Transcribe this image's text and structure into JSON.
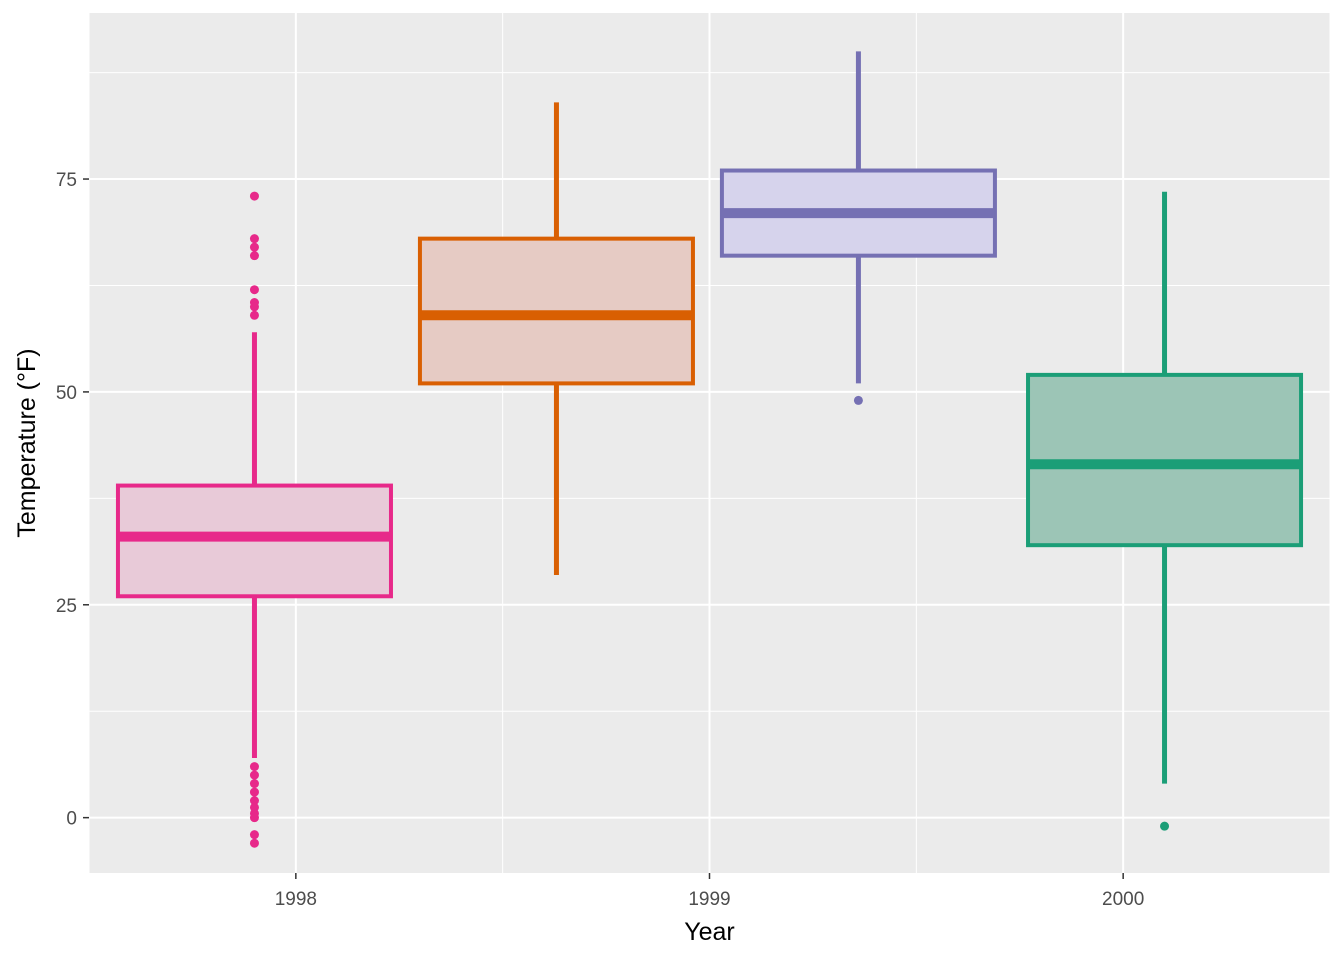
{
  "chart_data": {
    "type": "boxplot",
    "xlabel": "Year",
    "ylabel": "Temperature (°F)",
    "ylim": [
      -6.5,
      94.5
    ],
    "xlim": [
      1997.5,
      2000.5
    ],
    "x_ticks": [
      {
        "value": 1998,
        "label": "1998"
      },
      {
        "value": 1999,
        "label": "1999"
      },
      {
        "value": 2000,
        "label": "2000"
      }
    ],
    "y_ticks": [
      {
        "value": 0,
        "label": "0"
      },
      {
        "value": 25,
        "label": "25"
      },
      {
        "value": 50,
        "label": "50"
      },
      {
        "value": 75,
        "label": "75"
      }
    ],
    "grid": true,
    "legend": "none",
    "background": "#ebebeb",
    "boxes": [
      {
        "x_center": 1997.9,
        "x_half_width": 0.33,
        "q1": 26,
        "median": 33,
        "q3": 39,
        "whisker_low": 7,
        "whisker_high": 57,
        "outliers": [
          73,
          68,
          67,
          66,
          62,
          60.5,
          60,
          59,
          6,
          5,
          4,
          3,
          2,
          1.2,
          0.5,
          0,
          -2,
          -3
        ],
        "stroke": "#e7298a",
        "fill": "#e8cad8"
      },
      {
        "x_center": 1998.63,
        "x_half_width": 0.33,
        "q1": 51,
        "median": 59,
        "q3": 68,
        "whisker_low": 28.5,
        "whisker_high": 84,
        "outliers": [],
        "stroke": "#d95f02",
        "fill": "#e6cbc4"
      },
      {
        "x_center": 1999.36,
        "x_half_width": 0.33,
        "q1": 66,
        "median": 71,
        "q3": 76,
        "whisker_low": 51,
        "whisker_high": 90,
        "outliers": [
          49
        ],
        "stroke": "#7570b3",
        "fill": "#d6d3ec"
      },
      {
        "x_center": 2000.1,
        "x_half_width": 0.33,
        "q1": 32,
        "median": 41.5,
        "q3": 52,
        "whisker_low": 4,
        "whisker_high": 73.5,
        "outliers": [
          -1
        ],
        "stroke": "#1b9e77",
        "fill": "#9cc5b6"
      }
    ]
  }
}
